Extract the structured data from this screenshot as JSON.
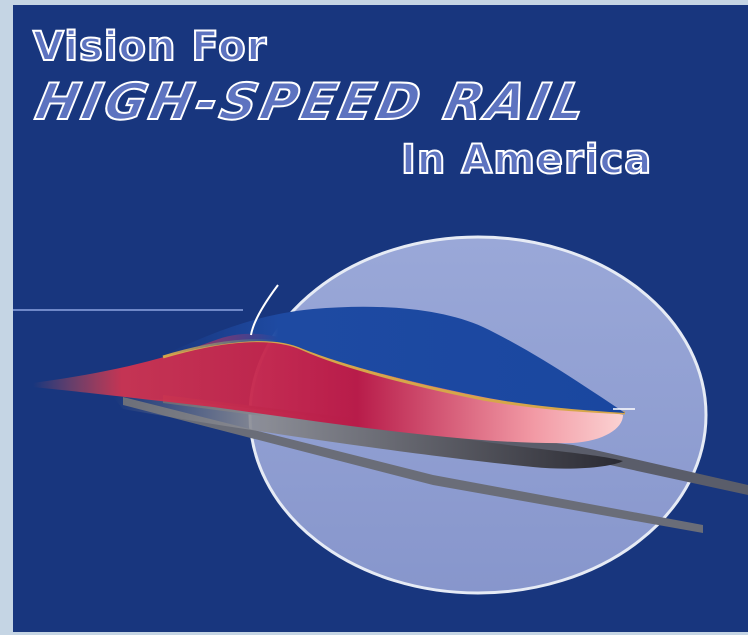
{
  "title": {
    "line1": "Vision For",
    "line2": "HIGH-SPEED RAIL",
    "line3": "In America"
  },
  "colors": {
    "background": "#18367e",
    "title_fill": "#5d73c0",
    "title_outline": "#ffffff",
    "ellipse": "#8e9ed0",
    "train_body_red": "#c21e4e",
    "train_roof_blue": "#1c4ba0"
  },
  "illustration": {
    "subject": "high-speed train",
    "icon": "train-icon"
  }
}
